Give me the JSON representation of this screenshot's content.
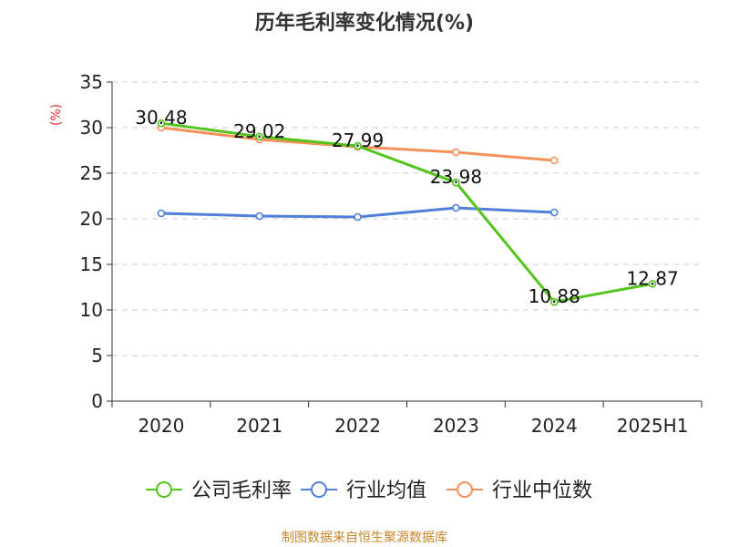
{
  "chart_data": {
    "type": "line",
    "title": "历年毛利率变化情况(%)",
    "ylabel": "(%)",
    "xlabel": "",
    "ylim": [
      0,
      35
    ],
    "yticks": [
      0,
      5,
      10,
      15,
      20,
      25,
      30,
      35
    ],
    "grid": true,
    "legend_position": "bottom",
    "categories": [
      "2020",
      "2021",
      "2022",
      "2023",
      "2024",
      "2025H1"
    ],
    "series": [
      {
        "name": "公司毛利率",
        "color": "#52c41a",
        "values": [
          30.48,
          29.02,
          27.99,
          23.98,
          10.88,
          12.87
        ],
        "show_labels": true
      },
      {
        "name": "行业均值",
        "color": "#4f7fd9",
        "values": [
          20.6,
          20.3,
          20.2,
          21.2,
          20.7,
          null
        ],
        "show_labels": false
      },
      {
        "name": "行业中位数",
        "color": "#f4915b",
        "values": [
          30.0,
          28.7,
          27.9,
          27.3,
          26.4,
          null
        ],
        "show_labels": false
      }
    ],
    "source_note": "制图数据来自恒生聚源数据库",
    "colors": {
      "axis": "#333333",
      "grid": "#cccccc",
      "ylabel": "#e8312e",
      "source": "#c8862a",
      "title": "#333333"
    }
  }
}
